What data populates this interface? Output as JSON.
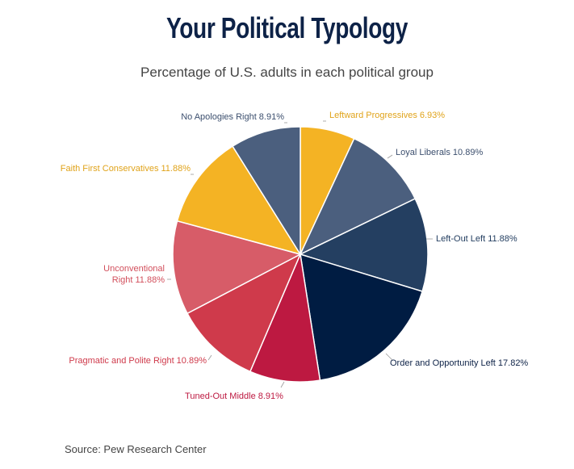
{
  "title": "Your Political Typology",
  "subtitle": "Percentage of U.S. adults in each political group",
  "source": "Source: Pew Research Center",
  "chart_data": {
    "type": "pie",
    "unit": "%",
    "slices": [
      {
        "label": "Leftward Progressives",
        "value": 6.93,
        "display": "Leftward Progressives 6.93%",
        "color": "#f4b324",
        "label_color": "#e0a31a"
      },
      {
        "label": "Loyal Liberals",
        "value": 10.89,
        "display": "Loyal Liberals 10.89%",
        "color": "#4b5f7e",
        "label_color": "#3c4f6e"
      },
      {
        "label": "Left-Out Left",
        "value": 11.88,
        "display": "Left-Out Left 11.88%",
        "color": "#243f61",
        "label_color": "#243f61"
      },
      {
        "label": "Order and Opportunity Left",
        "value": 17.82,
        "display": "Order and Opportunity Left 17.82%",
        "color": "#001c42",
        "label_color": "#0d2247"
      },
      {
        "label": "Tuned-Out Middle",
        "value": 8.91,
        "display": "Tuned-Out Middle 8.91%",
        "color": "#bd1941",
        "label_color": "#bd1941"
      },
      {
        "label": "Pragmatic and Polite Right",
        "value": 10.89,
        "display": "Pragmatic and Polite Right 10.89%",
        "color": "#cf3a4b",
        "label_color": "#cf3a4b"
      },
      {
        "label": "Unconventional Right",
        "value": 11.88,
        "display_lines": [
          "Unconventional",
          "Right 11.88%"
        ],
        "color": "#d75c68",
        "label_color": "#d24f5c"
      },
      {
        "label": "Faith First Conservatives",
        "value": 11.88,
        "display": "Faith First Conservatives 11.88%",
        "color": "#f4b324",
        "label_color": "#e0a31a"
      },
      {
        "label": "No Apologies Right",
        "value": 8.91,
        "display": "No Apologies Right 8.91%",
        "color": "#4b5f7e",
        "label_color": "#3c4f6e"
      }
    ],
    "start_angle_deg": 0,
    "direction": "clockwise",
    "legend": "none"
  }
}
